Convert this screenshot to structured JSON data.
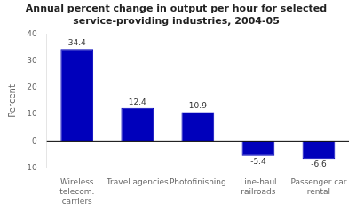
{
  "chart_data": {
    "type": "bar",
    "title": "Annual percent change in output per hour for selected\nservice-providing industries, 2004-05",
    "categories": [
      "Wireless\ntelecom.\ncarriers",
      "Travel agencies",
      "Photofinishing",
      "Line-haul\nrailroads",
      "Passenger car\nrental"
    ],
    "values": [
      34.4,
      12.4,
      10.9,
      -5.4,
      -6.6
    ],
    "color": "#0000bb",
    "ylabel": "Percent",
    "ylim": [
      -10,
      40
    ],
    "yticks": [
      -10,
      0,
      10,
      20,
      30,
      40
    ],
    "grid": false,
    "data_labels": true
  }
}
